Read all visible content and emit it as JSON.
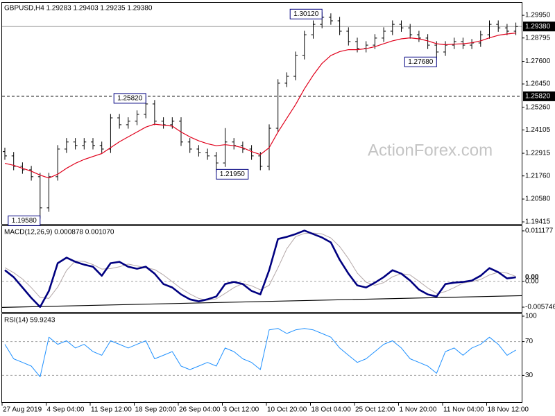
{
  "chart_data": [
    {
      "type": "ohlc",
      "title": "GBPUSD,H4  1.29283 1.29403 1.29235 1.29380",
      "watermark": "ActionForex.com",
      "color": "#000000",
      "open": [
        1.23,
        1.2278,
        1.2225,
        1.2207,
        1.2172,
        1.2013,
        1.2172,
        1.2313,
        1.2349,
        1.2331,
        1.2349,
        1.2331,
        1.2313,
        1.2472,
        1.2437,
        1.2455,
        1.249,
        1.2543,
        1.2455,
        1.2437,
        1.2455,
        1.2349,
        1.2313,
        1.2295,
        1.2278,
        1.2242,
        1.2349,
        1.2331,
        1.2313,
        1.2278,
        1.2225,
        1.2419,
        1.2649,
        1.2684,
        1.279,
        1.2896,
        1.2949,
        1.2985,
        1.2967,
        1.2914,
        1.2861,
        1.2826,
        1.2843,
        1.2879,
        1.2914,
        1.2949,
        1.2931,
        1.2896,
        1.2879,
        1.2843,
        1.2808,
        1.2843,
        1.2861,
        1.2843,
        1.2854,
        1.2896,
        1.2949,
        1.2931,
        1.2914
      ],
      "high": [
        1.232,
        1.2298,
        1.2245,
        1.2227,
        1.2192,
        1.2192,
        1.2333,
        1.2369,
        1.2369,
        1.2369,
        1.2369,
        1.2351,
        1.2492,
        1.2492,
        1.2475,
        1.251,
        1.2582,
        1.2563,
        1.2475,
        1.2475,
        1.2475,
        1.2369,
        1.2333,
        1.2315,
        1.2298,
        1.242,
        1.2369,
        1.2351,
        1.2333,
        1.2298,
        1.2439,
        1.2669,
        1.2704,
        1.281,
        1.2916,
        1.2969,
        1.3012,
        1.3005,
        1.2987,
        1.2934,
        1.2881,
        1.2863,
        1.2899,
        1.2934,
        1.2969,
        1.2969,
        1.2951,
        1.2916,
        1.2899,
        1.2863,
        1.2863,
        1.2881,
        1.2881,
        1.2874,
        1.2916,
        1.2969,
        1.2969,
        1.2951,
        1.2958
      ],
      "low": [
        1.2258,
        1.2205,
        1.2187,
        1.2152,
        1.1958,
        1.1993,
        1.2152,
        1.2293,
        1.2311,
        1.2311,
        1.2311,
        1.2293,
        1.2293,
        1.2417,
        1.2417,
        1.2435,
        1.247,
        1.2435,
        1.2417,
        1.2417,
        1.2329,
        1.2293,
        1.2275,
        1.2258,
        1.2195,
        1.2222,
        1.2311,
        1.2293,
        1.2258,
        1.2205,
        1.2205,
        1.2399,
        1.2629,
        1.2664,
        1.277,
        1.2876,
        1.2929,
        1.2947,
        1.2894,
        1.2841,
        1.2806,
        1.2806,
        1.2823,
        1.2859,
        1.2894,
        1.2911,
        1.2876,
        1.2859,
        1.2823,
        1.2768,
        1.2788,
        1.2823,
        1.2823,
        1.2823,
        1.2834,
        1.2876,
        1.2911,
        1.2894,
        1.2894
      ],
      "close": [
        1.2278,
        1.2225,
        1.2207,
        1.2172,
        1.2013,
        1.2172,
        1.2313,
        1.2349,
        1.2331,
        1.2349,
        1.2331,
        1.2313,
        1.2472,
        1.2437,
        1.2455,
        1.249,
        1.2543,
        1.2455,
        1.2437,
        1.2455,
        1.2349,
        1.2313,
        1.2295,
        1.2278,
        1.2242,
        1.2349,
        1.2331,
        1.2313,
        1.2278,
        1.2225,
        1.2419,
        1.2649,
        1.2684,
        1.279,
        1.2896,
        1.2949,
        1.2985,
        1.2967,
        1.2914,
        1.2861,
        1.2826,
        1.2843,
        1.2879,
        1.2914,
        1.2949,
        1.2931,
        1.2896,
        1.2879,
        1.2843,
        1.2808,
        1.2843,
        1.2861,
        1.2843,
        1.2854,
        1.2896,
        1.2949,
        1.2931,
        1.2914,
        1.2938
      ],
      "overlays": [
        {
          "color": "#e0001b",
          "values": [
            1.224,
            1.223,
            1.2215,
            1.22,
            1.218,
            1.2165,
            1.2185,
            1.2215,
            1.224,
            1.226,
            1.2275,
            1.229,
            1.232,
            1.235,
            1.2375,
            1.24,
            1.2425,
            1.244,
            1.2435,
            1.243,
            1.24,
            1.2375,
            1.2355,
            1.234,
            1.233,
            1.2335,
            1.233,
            1.232,
            1.23,
            1.2285,
            1.232,
            1.24,
            1.247,
            1.254,
            1.262,
            1.269,
            1.275,
            1.279,
            1.281,
            1.282,
            1.282,
            1.2825,
            1.2835,
            1.285,
            1.2865,
            1.2875,
            1.288,
            1.2875,
            1.2865,
            1.285,
            1.2845,
            1.2848,
            1.285,
            1.2855,
            1.2865,
            1.288,
            1.2893,
            1.29,
            1.2905
          ]
        }
      ],
      "ylim": [
        1.1931,
        1.3059
      ],
      "yticks": [
        {
          "value": 1.19415,
          "label": "1.19415"
        },
        {
          "value": 1.2058,
          "label": "1.20580"
        },
        {
          "value": 1.2176,
          "label": "1.21760"
        },
        {
          "value": 1.22915,
          "label": "1.22915"
        },
        {
          "value": 1.24105,
          "label": "1.24105"
        },
        {
          "value": 1.2526,
          "label": "1.25260"
        },
        {
          "value": 1.2645,
          "label": "1.26450"
        },
        {
          "value": 1.276,
          "label": "1.27600"
        },
        {
          "value": 1.28795,
          "label": "1.28795"
        },
        {
          "value": 1.2995,
          "label": "1.29950"
        }
      ],
      "levels": [
        {
          "value": 1.2938,
          "label": "1.29380",
          "style": "solid",
          "color": "#a0a0a0"
        },
        {
          "value": 1.2582,
          "label": "1.25820",
          "style": "dashed",
          "color": "#000000"
        }
      ],
      "annotations": [
        {
          "value": 1.3012,
          "label": "1.30120"
        },
        {
          "value": 1.2582,
          "label": "1.25820"
        },
        {
          "value": 1.2195,
          "label": "1.21950"
        },
        {
          "value": 1.2768,
          "label": "1.27680"
        },
        {
          "value": 1.1958,
          "label": "1.19580"
        }
      ]
    },
    {
      "type": "macd",
      "title": "MACD(12,26,9) 0.000878 0.001070",
      "series": [
        {
          "color": "#000080",
          "values": [
            0.00246,
            0.00092,
            -0.00138,
            -0.00369,
            -0.00569,
            -0.00215,
            0.004,
            0.00523,
            0.00431,
            0.00369,
            0.00323,
            0.00123,
            0.004,
            0.00431,
            0.00323,
            0.00277,
            0.00323,
            0.00169,
            -0.00062,
            -0.00138,
            -0.00292,
            -0.004,
            -0.00446,
            -0.004,
            -0.00338,
            -0.00062,
            -0.00015,
            -0.00062,
            -0.00215,
            -0.00292,
            0.00246,
            0.00938,
            0.00985,
            0.01046,
            0.01123,
            0.01046,
            0.00969,
            0.00862,
            0.00477,
            0.00169,
            -0.00092,
            -0.00138,
            -0.00031,
            0.00092,
            0.00246,
            0.00169,
            0.00015,
            -0.00185,
            -0.00292,
            -0.00338,
            -0.00062,
            -0.00031,
            -0.00015,
            0.00015,
            0.00123,
            0.00292,
            0.002,
            0.00062,
            0.000878
          ]
        },
        {
          "color": "#b4a8a8",
          "values": [
            0.003,
            0.0019,
            0.0005,
            -0.0014,
            -0.0036,
            -0.0038,
            -0.0013,
            0.0024,
            0.0045,
            0.0044,
            0.0037,
            0.0027,
            0.0028,
            0.0032,
            0.0038,
            0.0034,
            0.003,
            0.0026,
            0.0014,
            -0.0001,
            -0.0016,
            -0.0028,
            -0.0038,
            -0.0042,
            -0.0039,
            -0.0027,
            -0.0014,
            -0.0005,
            -0.001,
            -0.0019,
            -0.0009,
            0.003,
            0.0072,
            0.0099,
            0.0106,
            0.0107,
            0.0105,
            0.0096,
            0.0077,
            0.005,
            0.0018,
            -0.0002,
            -0.0009,
            -0.0003,
            0.001,
            0.0017,
            0.0014,
            0,
            -0.0015,
            -0.0027,
            -0.0023,
            -0.0014,
            -0.0004,
            -0.0001,
            0.0004,
            0.0014,
            0.002,
            0.0018,
            0.00107
          ]
        }
      ],
      "trendline": [
        -0.0058,
        -0.0032
      ],
      "zero_line": true,
      "ylim": [
        -0.00682,
        0.01225
      ],
      "yticks": [
        0.011177,
        {
          "value": 0,
          "label": "0.00"
        },
        -0.005746
      ],
      "current": {
        "value": 0.000878,
        "label": "0.00"
      }
    },
    {
      "type": "rsi",
      "title": "RSI(14) 59.9243",
      "color": "#1e90ff",
      "values": [
        66.7,
        49.6,
        45.3,
        41,
        28.2,
        75.2,
        66.7,
        70.9,
        62.4,
        66.7,
        58.1,
        53.8,
        70.9,
        66.7,
        62.4,
        66.7,
        70.9,
        49.6,
        53.8,
        58.1,
        41,
        36.8,
        41,
        45.3,
        41,
        62.4,
        58.1,
        49.6,
        45.3,
        36.8,
        83.8,
        85.5,
        79.5,
        83.8,
        85.5,
        83.8,
        79.5,
        75.2,
        62.4,
        53.8,
        45.3,
        49.6,
        58.1,
        66.7,
        70.9,
        62.4,
        49.6,
        45.3,
        41,
        32.5,
        58.1,
        62.4,
        53.8,
        62.4,
        66.7,
        75.2,
        66.7,
        53.8,
        59.9243
      ],
      "ylim": [
        0,
        100
      ],
      "yticks": [
        100,
        70,
        30
      ],
      "categories": [
        "27 Aug 2019",
        null,
        null,
        null,
        null,
        "4 Sep 04:00",
        null,
        null,
        null,
        null,
        "11 Sep 12:00",
        null,
        null,
        null,
        null,
        "18 Sep 20:00",
        null,
        null,
        null,
        null,
        "26 Sep 04:00",
        null,
        null,
        null,
        null,
        "3 Oct 12:00",
        null,
        null,
        null,
        null,
        "10 Oct 20:00",
        null,
        null,
        null,
        null,
        "18 Oct 04:00",
        null,
        null,
        null,
        null,
        "25 Oct 12:00",
        null,
        null,
        null,
        null,
        "1 Nov 20:00",
        null,
        null,
        null,
        null,
        "11 Nov 04:00",
        null,
        null,
        null,
        null,
        "18 Nov 12:00",
        null,
        null,
        null
      ]
    }
  ]
}
